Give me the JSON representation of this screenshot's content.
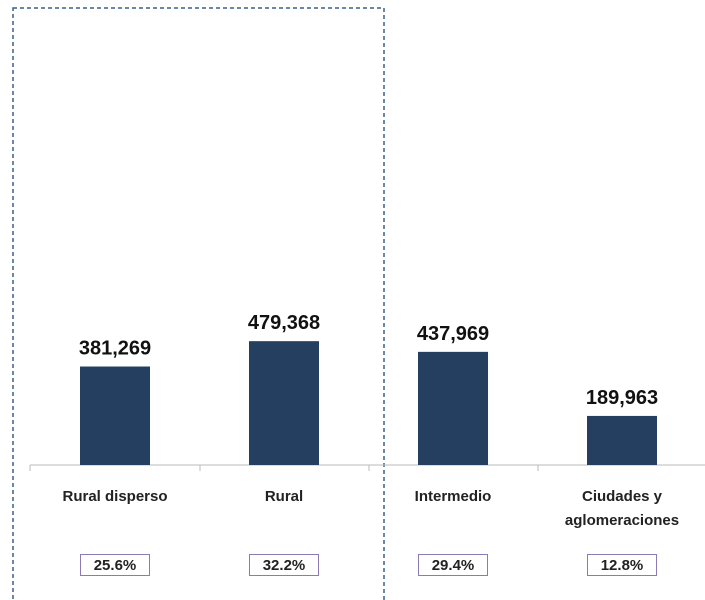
{
  "chart_data": {
    "type": "bar",
    "categories": [
      "Rural disperso",
      "Rural",
      "Intermedio",
      "Ciudades y aglomeraciones"
    ],
    "values": [
      381269,
      479368,
      437969,
      189963
    ],
    "value_labels": [
      "381,269",
      "479,368",
      "437,969",
      "189,963"
    ],
    "shares": [
      25.6,
      32.2,
      29.4,
      12.8
    ],
    "share_labels": [
      "25.6%",
      "32.2%",
      "29.4%",
      "12.8%"
    ],
    "color": "#243f60",
    "ylim": [
      0,
      1800000
    ]
  }
}
